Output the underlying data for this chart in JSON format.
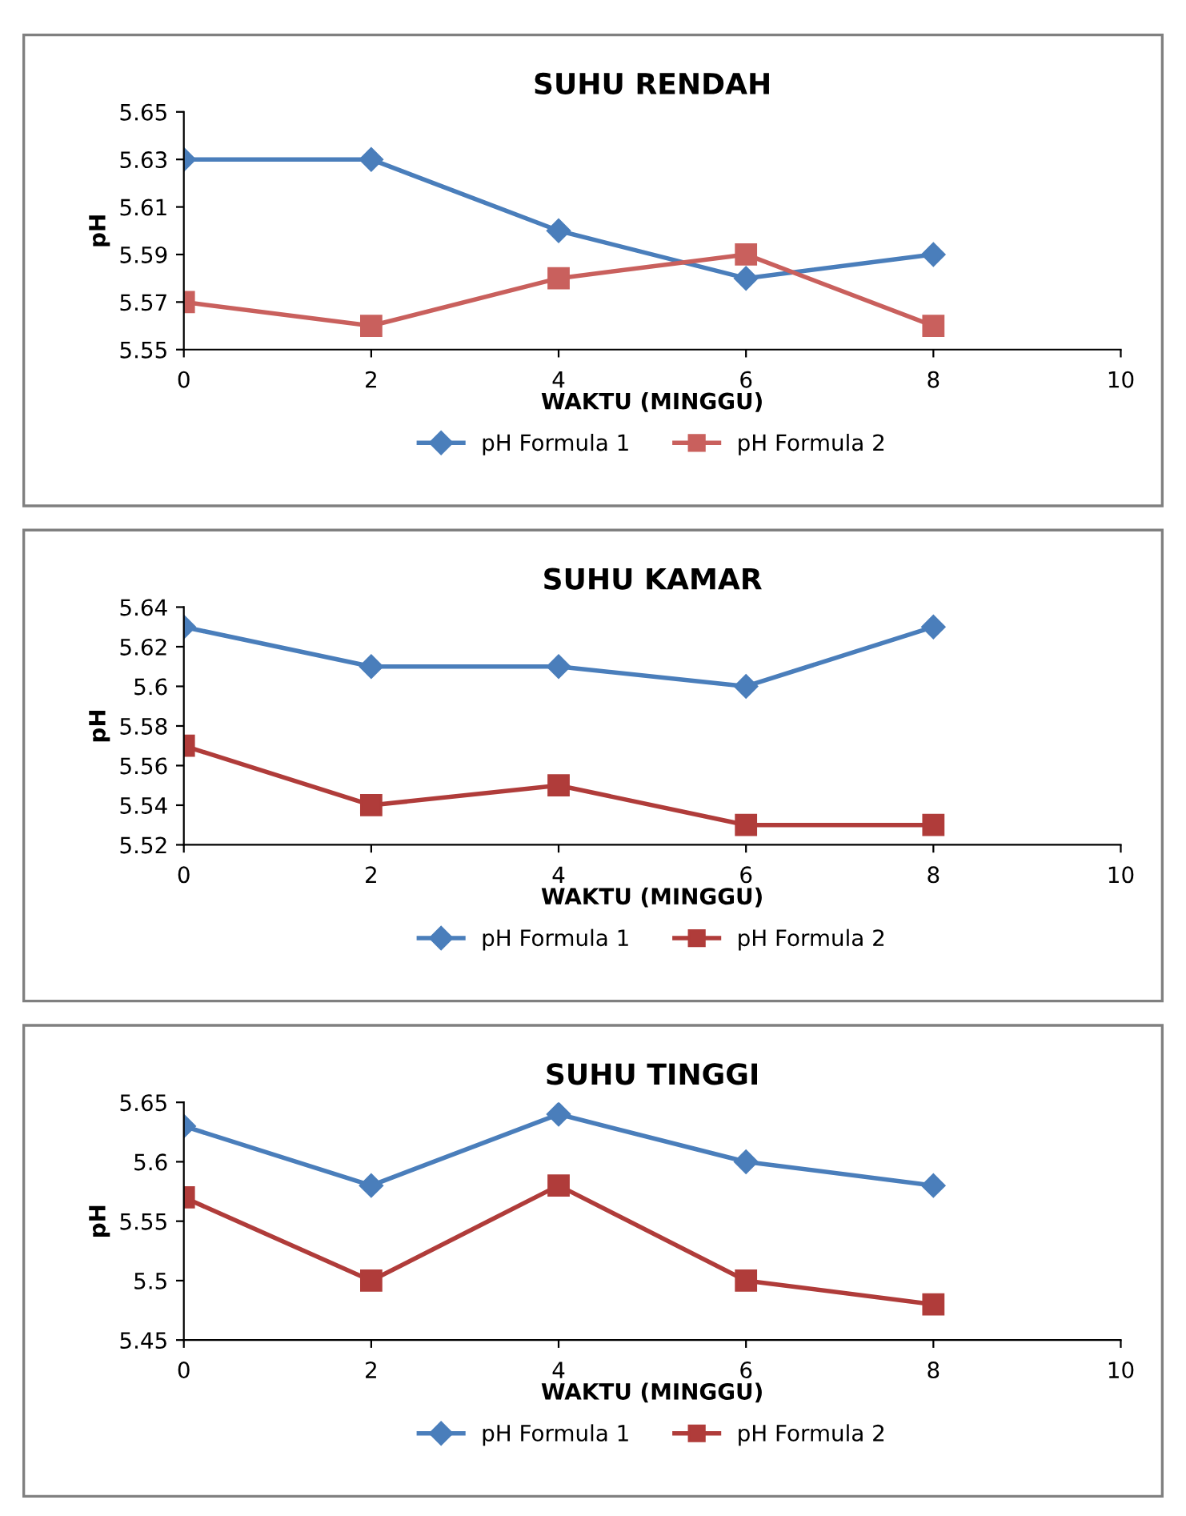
{
  "chart_data": [
    {
      "type": "line",
      "title": "SUHU RENDAH",
      "xlabel": "WAKTU (MINGGU)",
      "ylabel": "pH",
      "x": [
        0,
        2,
        4,
        6,
        8
      ],
      "xlim": [
        0,
        10
      ],
      "xticks": [
        0,
        2,
        4,
        6,
        8,
        10
      ],
      "ylim": [
        5.55,
        5.65
      ],
      "yticks": [
        5.55,
        5.57,
        5.59,
        5.61,
        5.63,
        5.65
      ],
      "legend": "bottom",
      "grid": false,
      "series": [
        {
          "name": "pH Formula 1",
          "color": "#4a7ebb",
          "marker": "diamond",
          "values": [
            5.63,
            5.63,
            5.6,
            5.58,
            5.59
          ]
        },
        {
          "name": "pH Formula 2",
          "color": "#c9605d",
          "marker": "square",
          "values": [
            5.57,
            5.56,
            5.58,
            5.59,
            5.56
          ]
        }
      ]
    },
    {
      "type": "line",
      "title": "SUHU KAMAR",
      "xlabel": "WAKTU (MINGGU)",
      "ylabel": "pH",
      "x": [
        0,
        2,
        4,
        6,
        8
      ],
      "xlim": [
        0,
        10
      ],
      "xticks": [
        0,
        2,
        4,
        6,
        8,
        10
      ],
      "ylim": [
        5.52,
        5.64
      ],
      "yticks": [
        5.52,
        5.54,
        5.56,
        5.58,
        5.6,
        5.62,
        5.64
      ],
      "legend": "bottom",
      "grid": false,
      "series": [
        {
          "name": "pH Formula 1",
          "color": "#4a7ebb",
          "marker": "diamond",
          "values": [
            5.63,
            5.61,
            5.61,
            5.6,
            5.63
          ]
        },
        {
          "name": "pH Formula 2",
          "color": "#b03c3a",
          "marker": "square",
          "values": [
            5.57,
            5.54,
            5.55,
            5.53,
            5.53
          ]
        }
      ]
    },
    {
      "type": "line",
      "title": "SUHU TINGGI",
      "xlabel": "WAKTU (MINGGU)",
      "ylabel": "pH",
      "x": [
        0,
        2,
        4,
        6,
        8
      ],
      "xlim": [
        0,
        10
      ],
      "xticks": [
        0,
        2,
        4,
        6,
        8,
        10
      ],
      "ylim": [
        5.45,
        5.65
      ],
      "yticks": [
        5.45,
        5.5,
        5.55,
        5.6,
        5.65
      ],
      "legend": "bottom",
      "grid": false,
      "series": [
        {
          "name": "pH Formula 1",
          "color": "#4a7ebb",
          "marker": "diamond",
          "values": [
            5.63,
            5.58,
            5.64,
            5.6,
            5.58
          ]
        },
        {
          "name": "pH Formula 2",
          "color": "#b03c3a",
          "marker": "square",
          "values": [
            5.57,
            5.5,
            5.58,
            5.5,
            5.48
          ]
        }
      ]
    }
  ]
}
